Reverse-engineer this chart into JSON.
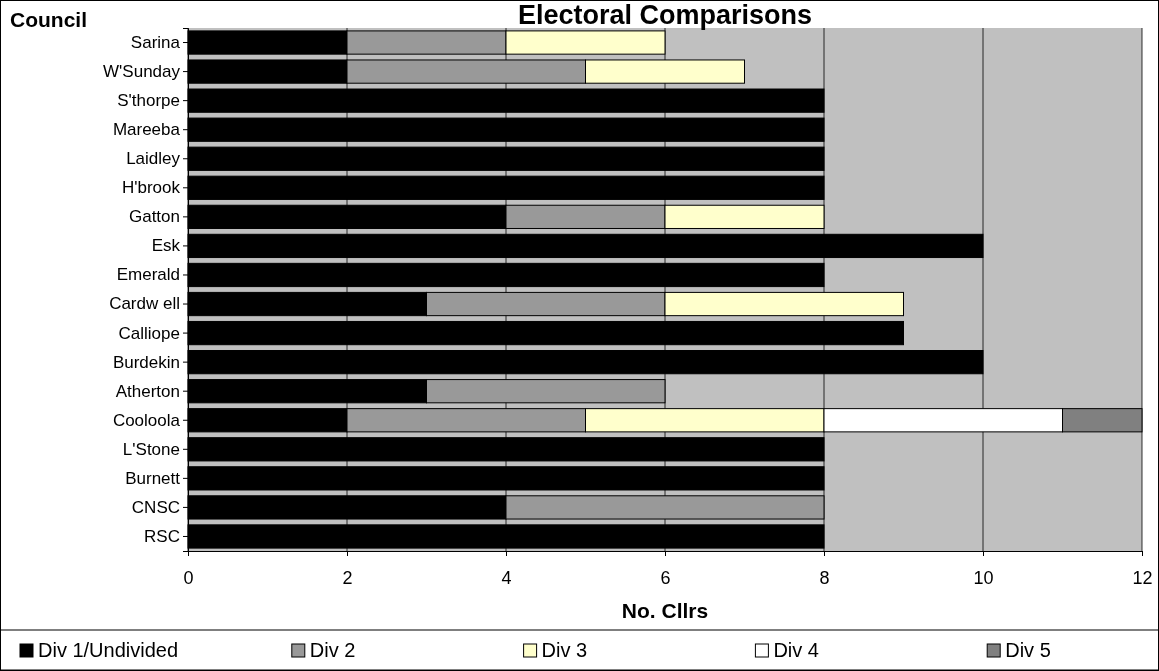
{
  "chart_data": {
    "type": "bar",
    "orientation": "horizontal",
    "stacked": true,
    "title": "Electoral Comparisons",
    "annotations": [
      "Council"
    ],
    "xlabel": "No. Cllrs",
    "categories": [
      "Sarina",
      "W'Sunday",
      "S'thorpe",
      "Mareeba",
      "Laidley",
      "H'brook",
      "Gatton",
      "Esk",
      "Emerald",
      "Cardw ell",
      "Calliope",
      "Burdekin",
      "Atherton",
      "Cooloola",
      "L'Stone",
      "Burnett",
      "CNSC",
      "RSC"
    ],
    "series": [
      {
        "name": "Div 1/Undivided",
        "color": "#000000",
        "values": [
          2,
          2,
          8,
          8,
          8,
          8,
          4,
          10,
          8,
          3,
          9,
          10,
          3,
          2,
          8,
          8,
          4,
          8
        ]
      },
      {
        "name": "Div 2",
        "color": "#999999",
        "values": [
          2,
          3,
          null,
          null,
          null,
          null,
          2,
          null,
          null,
          3,
          null,
          null,
          3,
          3,
          null,
          null,
          4,
          null
        ]
      },
      {
        "name": "Div 3",
        "color": "#ffffcc",
        "values": [
          2,
          2,
          null,
          null,
          null,
          null,
          2,
          null,
          null,
          3,
          null,
          null,
          null,
          3,
          null,
          null,
          null,
          null
        ]
      },
      {
        "name": "Div 4",
        "color": "#ffffff",
        "values": [
          null,
          null,
          null,
          null,
          null,
          null,
          null,
          null,
          null,
          null,
          null,
          null,
          null,
          3,
          null,
          null,
          null,
          null
        ]
      },
      {
        "name": "Div 5",
        "color": "#808080",
        "values": [
          null,
          null,
          null,
          null,
          null,
          null,
          null,
          null,
          null,
          null,
          null,
          null,
          null,
          1,
          null,
          null,
          null,
          null
        ]
      }
    ],
    "xlim": [
      0,
      12
    ],
    "xticks": [
      0,
      2,
      4,
      6,
      8,
      10,
      12
    ],
    "grid": "x",
    "legend": "bottom"
  }
}
